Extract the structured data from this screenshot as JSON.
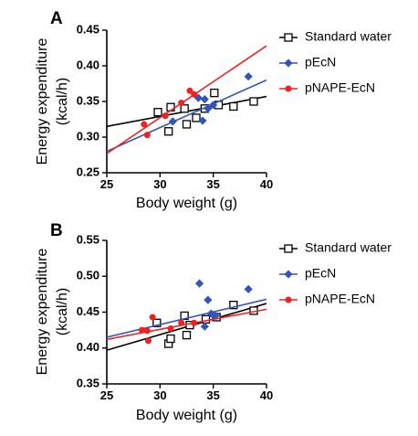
{
  "chart_data": [
    {
      "type": "scatter",
      "panel_label": "A",
      "xlabel": "Body weight (g)",
      "ylabel": "Energy expenditure (kcal/h)",
      "xlim": [
        25,
        40
      ],
      "ylim": [
        0.25,
        0.45
      ],
      "xticks": [
        25,
        30,
        35,
        40
      ],
      "yticks": [
        0.25,
        0.3,
        0.35,
        0.4,
        0.45
      ],
      "ytick_labels": [
        "0.25",
        "0.30",
        "0.35",
        "0.40",
        "0.45"
      ],
      "grid": false,
      "legend_placement": "right",
      "series": [
        {
          "name": "Standard water",
          "color": "#000000",
          "marker": "open-square",
          "points": [
            [
              29.8,
              0.335
            ],
            [
              30.8,
              0.308
            ],
            [
              31.0,
              0.342
            ],
            [
              32.3,
              0.34
            ],
            [
              32.5,
              0.318
            ],
            [
              33.4,
              0.327
            ],
            [
              34.2,
              0.34
            ],
            [
              35.1,
              0.362
            ],
            [
              35.5,
              0.345
            ],
            [
              36.9,
              0.343
            ],
            [
              38.8,
              0.35
            ]
          ],
          "fit": [
            [
              25,
              0.315
            ],
            [
              40,
              0.357
            ]
          ]
        },
        {
          "name": "pEcN",
          "color": "#3355bb",
          "marker": "diamond",
          "points": [
            [
              31.2,
              0.322
            ],
            [
              33.6,
              0.355
            ],
            [
              34.0,
              0.323
            ],
            [
              34.2,
              0.353
            ],
            [
              34.5,
              0.34
            ],
            [
              35.0,
              0.345
            ],
            [
              38.3,
              0.385
            ]
          ],
          "fit": [
            [
              25,
              0.28
            ],
            [
              40,
              0.38
            ]
          ]
        },
        {
          "name": "pNAPE-EcN",
          "color": "#ee2222",
          "marker": "circle",
          "points": [
            [
              28.5,
              0.318
            ],
            [
              28.8,
              0.303
            ],
            [
              30.5,
              0.33
            ],
            [
              32.0,
              0.348
            ],
            [
              32.8,
              0.365
            ],
            [
              33.2,
              0.36
            ]
          ],
          "fit": [
            [
              25,
              0.277
            ],
            [
              40,
              0.428
            ]
          ]
        }
      ]
    },
    {
      "type": "scatter",
      "panel_label": "B",
      "xlabel": "Body weight (g)",
      "ylabel": "Energy expenditure (kcal/h)",
      "xlim": [
        25,
        40
      ],
      "ylim": [
        0.35,
        0.55
      ],
      "xticks": [
        25,
        30,
        35,
        40
      ],
      "yticks": [
        0.35,
        0.4,
        0.45,
        0.5,
        0.55
      ],
      "ytick_labels": [
        "0.35",
        "0.40",
        "0.45",
        "0.50",
        "0.55"
      ],
      "grid": false,
      "legend_placement": "right",
      "series": [
        {
          "name": "Standard water",
          "color": "#000000",
          "marker": "open-square",
          "points": [
            [
              29.7,
              0.435
            ],
            [
              30.8,
              0.406
            ],
            [
              31.0,
              0.413
            ],
            [
              32.3,
              0.445
            ],
            [
              32.5,
              0.418
            ],
            [
              32.8,
              0.432
            ],
            [
              34.3,
              0.44
            ],
            [
              35.3,
              0.443
            ],
            [
              36.9,
              0.46
            ],
            [
              38.8,
              0.452
            ]
          ],
          "fit": [
            [
              25,
              0.397
            ],
            [
              40,
              0.462
            ]
          ]
        },
        {
          "name": "pEcN",
          "color": "#3355bb",
          "marker": "diamond",
          "points": [
            [
              33.7,
              0.49
            ],
            [
              34.5,
              0.467
            ],
            [
              34.2,
              0.43
            ],
            [
              34.8,
              0.448
            ],
            [
              35.2,
              0.445
            ],
            [
              38.3,
              0.482
            ]
          ],
          "fit": [
            [
              25,
              0.415
            ],
            [
              40,
              0.468
            ]
          ]
        },
        {
          "name": "pNAPE-EcN",
          "color": "#ee2222",
          "marker": "circle",
          "points": [
            [
              28.3,
              0.425
            ],
            [
              28.8,
              0.424
            ],
            [
              28.9,
              0.41
            ],
            [
              29.3,
              0.443
            ],
            [
              31.0,
              0.427
            ],
            [
              32.0,
              0.435
            ],
            [
              33.2,
              0.435
            ]
          ],
          "fit": [
            [
              25,
              0.412
            ],
            [
              40,
              0.454
            ]
          ]
        }
      ]
    }
  ]
}
